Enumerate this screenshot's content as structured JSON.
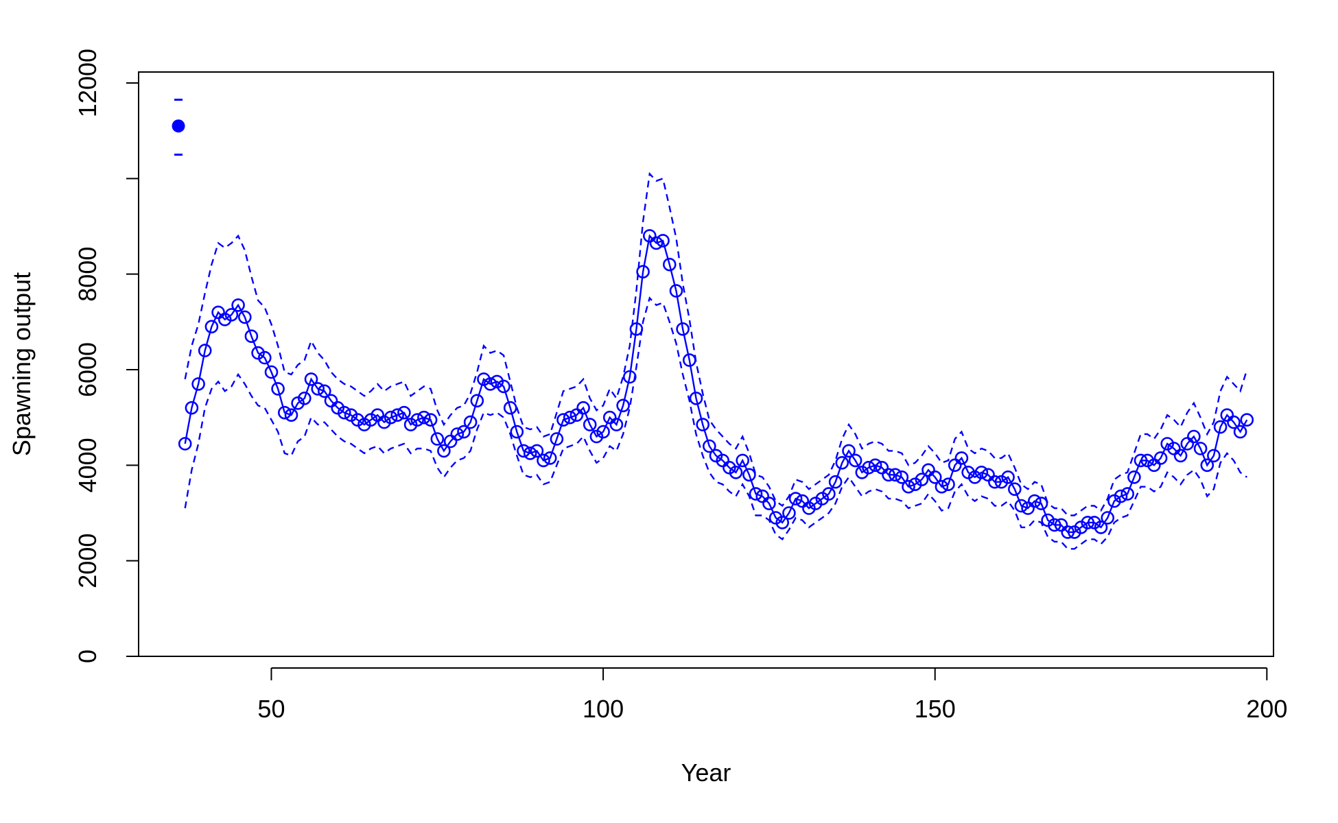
{
  "chart_data": {
    "type": "line",
    "title": "",
    "xlabel": "Year",
    "ylabel": "Spawning output",
    "xlim": [
      30,
      201
    ],
    "ylim": [
      0,
      12000
    ],
    "x_ticks": [
      50,
      100,
      150,
      200
    ],
    "y_ticks": [
      0,
      2000,
      4000,
      6000,
      8000,
      12000
    ],
    "y_tick_marks": [
      0,
      2000,
      4000,
      6000,
      8000,
      10000,
      12000
    ],
    "grid": false,
    "legend": false,
    "color": "#0000ff",
    "virgin": {
      "x": 36,
      "value": 11100,
      "lower": 10500,
      "upper": 11650
    },
    "series": [
      {
        "x": [
          37,
          38,
          39,
          40,
          41,
          42,
          43,
          44,
          45,
          46,
          47,
          48,
          49,
          50,
          51,
          52,
          53,
          54,
          55,
          56,
          57,
          58,
          59,
          60,
          61,
          62,
          63,
          64,
          65,
          66,
          67,
          68,
          69,
          70,
          71,
          72,
          73,
          74,
          75,
          76,
          77,
          78,
          79,
          80,
          81,
          82,
          83,
          84,
          85,
          86,
          87,
          88,
          89,
          90,
          91,
          92,
          93,
          94,
          95,
          96,
          97,
          98,
          99,
          100,
          101,
          102,
          103,
          104,
          105,
          106,
          107,
          108,
          109,
          110,
          111,
          112,
          113,
          114,
          115,
          116,
          117,
          118,
          119,
          120,
          121,
          122,
          123,
          124,
          125,
          126,
          127,
          128,
          129,
          130,
          131,
          132,
          133,
          134,
          135,
          136,
          137,
          138,
          139,
          140,
          141,
          142,
          143,
          144,
          145,
          146,
          147,
          148,
          149,
          150,
          151,
          152,
          153,
          154,
          155,
          156,
          157,
          158,
          159,
          160,
          161,
          162,
          163,
          164,
          165,
          166,
          167,
          168,
          169,
          170,
          171,
          172,
          173,
          174,
          175,
          176,
          177,
          178,
          179,
          180,
          181,
          182,
          183,
          184,
          185,
          186,
          187,
          188,
          189,
          190,
          191,
          192,
          193,
          194,
          195,
          196,
          197
        ],
        "values": [
          4450,
          5200,
          5700,
          6400,
          6900,
          7200,
          7050,
          7150,
          7350,
          7100,
          6700,
          6350,
          6250,
          5950,
          5600,
          5100,
          5050,
          5300,
          5400,
          5800,
          5600,
          5550,
          5350,
          5200,
          5100,
          5050,
          4950,
          4850,
          4950,
          5050,
          4900,
          5000,
          5050,
          5100,
          4850,
          4950,
          5000,
          4950,
          4550,
          4300,
          4500,
          4650,
          4700,
          4900,
          5350,
          5800,
          5700,
          5750,
          5650,
          5200,
          4700,
          4300,
          4250,
          4300,
          4100,
          4150,
          4550,
          4950,
          5000,
          5050,
          5200,
          4850,
          4600,
          4700,
          5000,
          4850,
          5250,
          5850,
          6850,
          8050,
          8800,
          8650,
          8700,
          8200,
          7650,
          6850,
          6200,
          5400,
          4850,
          4400,
          4200,
          4100,
          3950,
          3850,
          4100,
          3800,
          3400,
          3350,
          3200,
          2900,
          2800,
          3000,
          3300,
          3250,
          3100,
          3200,
          3300,
          3400,
          3650,
          4050,
          4300,
          4100,
          3850,
          3950,
          4000,
          3950,
          3800,
          3800,
          3750,
          3550,
          3600,
          3700,
          3900,
          3750,
          3550,
          3600,
          4000,
          4150,
          3850,
          3750,
          3850,
          3800,
          3650,
          3650,
          3750,
          3500,
          3150,
          3100,
          3250,
          3200,
          2850,
          2750,
          2750,
          2600,
          2600,
          2700,
          2800,
          2800,
          2700,
          2900,
          3250,
          3350,
          3400,
          3750,
          4100,
          4100,
          4000,
          4150,
          4450,
          4350,
          4200,
          4450,
          4600,
          4350,
          4000,
          4200,
          4800,
          5050,
          4900,
          4700,
          4950
        ]
      }
    ],
    "upper": [
      5800,
      6500,
      6950,
      7600,
      8200,
      8650,
      8550,
      8650,
      8800,
      8500,
      7950,
      7450,
      7300,
      6950,
      6500,
      5950,
      5900,
      6100,
      6200,
      6600,
      6350,
      6200,
      5950,
      5800,
      5700,
      5650,
      5550,
      5450,
      5550,
      5700,
      5550,
      5650,
      5700,
      5750,
      5450,
      5550,
      5650,
      5600,
      5150,
      4850,
      5050,
      5200,
      5250,
      5500,
      5950,
      6500,
      6350,
      6400,
      6300,
      5750,
      5200,
      4800,
      4750,
      4800,
      4600,
      4650,
      5100,
      5550,
      5600,
      5650,
      5800,
      5400,
      5150,
      5250,
      5600,
      5400,
      5850,
      6500,
      7650,
      9100,
      10100,
      9950,
      10000,
      9400,
      8750,
      7800,
      7050,
      6150,
      5500,
      4950,
      4750,
      4600,
      4450,
      4350,
      4600,
      4250,
      3800,
      3750,
      3550,
      3250,
      3150,
      3350,
      3700,
      3650,
      3500,
      3600,
      3700,
      3800,
      4100,
      4550,
      4850,
      4650,
      4350,
      4450,
      4500,
      4450,
      4300,
      4300,
      4250,
      4000,
      4050,
      4200,
      4400,
      4250,
      4050,
      4100,
      4550,
      4700,
      4350,
      4250,
      4350,
      4300,
      4150,
      4150,
      4250,
      3950,
      3600,
      3500,
      3650,
      3600,
      3200,
      3100,
      3100,
      2950,
      2950,
      3050,
      3150,
      3150,
      3050,
      3300,
      3700,
      3800,
      3850,
      4250,
      4650,
      4650,
      4550,
      4750,
      5050,
      4950,
      4800,
      5100,
      5300,
      5000,
      4650,
      4900,
      5550,
      5850,
      5700,
      5550,
      6000
    ],
    "lower": [
      3100,
      3900,
      4450,
      5200,
      5600,
      5750,
      5550,
      5650,
      5900,
      5700,
      5450,
      5250,
      5200,
      4950,
      4700,
      4250,
      4200,
      4500,
      4600,
      5000,
      4850,
      4900,
      4750,
      4600,
      4500,
      4450,
      4350,
      4250,
      4350,
      4400,
      4250,
      4350,
      4400,
      4450,
      4250,
      4350,
      4350,
      4300,
      3950,
      3750,
      3950,
      4100,
      4150,
      4300,
      4750,
      5100,
      5050,
      5100,
      5000,
      4650,
      4200,
      3800,
      3750,
      3800,
      3600,
      3650,
      4000,
      4350,
      4400,
      4450,
      4600,
      4300,
      4050,
      4150,
      4400,
      4300,
      4650,
      5200,
      6050,
      7000,
      7500,
      7350,
      7400,
      7000,
      6550,
      5900,
      5350,
      4650,
      4200,
      3850,
      3650,
      3600,
      3450,
      3350,
      3600,
      3350,
      2950,
      2950,
      2850,
      2550,
      2450,
      2650,
      2900,
      2850,
      2700,
      2800,
      2900,
      3000,
      3200,
      3550,
      3750,
      3550,
      3350,
      3450,
      3500,
      3450,
      3300,
      3300,
      3250,
      3100,
      3150,
      3200,
      3400,
      3250,
      3050,
      3100,
      3450,
      3600,
      3350,
      3250,
      3350,
      3300,
      3150,
      3150,
      3250,
      3050,
      2700,
      2700,
      2850,
      2800,
      2500,
      2400,
      2400,
      2250,
      2250,
      2350,
      2450,
      2450,
      2350,
      2500,
      2800,
      2900,
      2950,
      3250,
      3550,
      3550,
      3450,
      3550,
      3850,
      3750,
      3600,
      3800,
      3900,
      3700,
      3350,
      3500,
      4050,
      4250,
      4100,
      3850,
      3750
    ]
  }
}
